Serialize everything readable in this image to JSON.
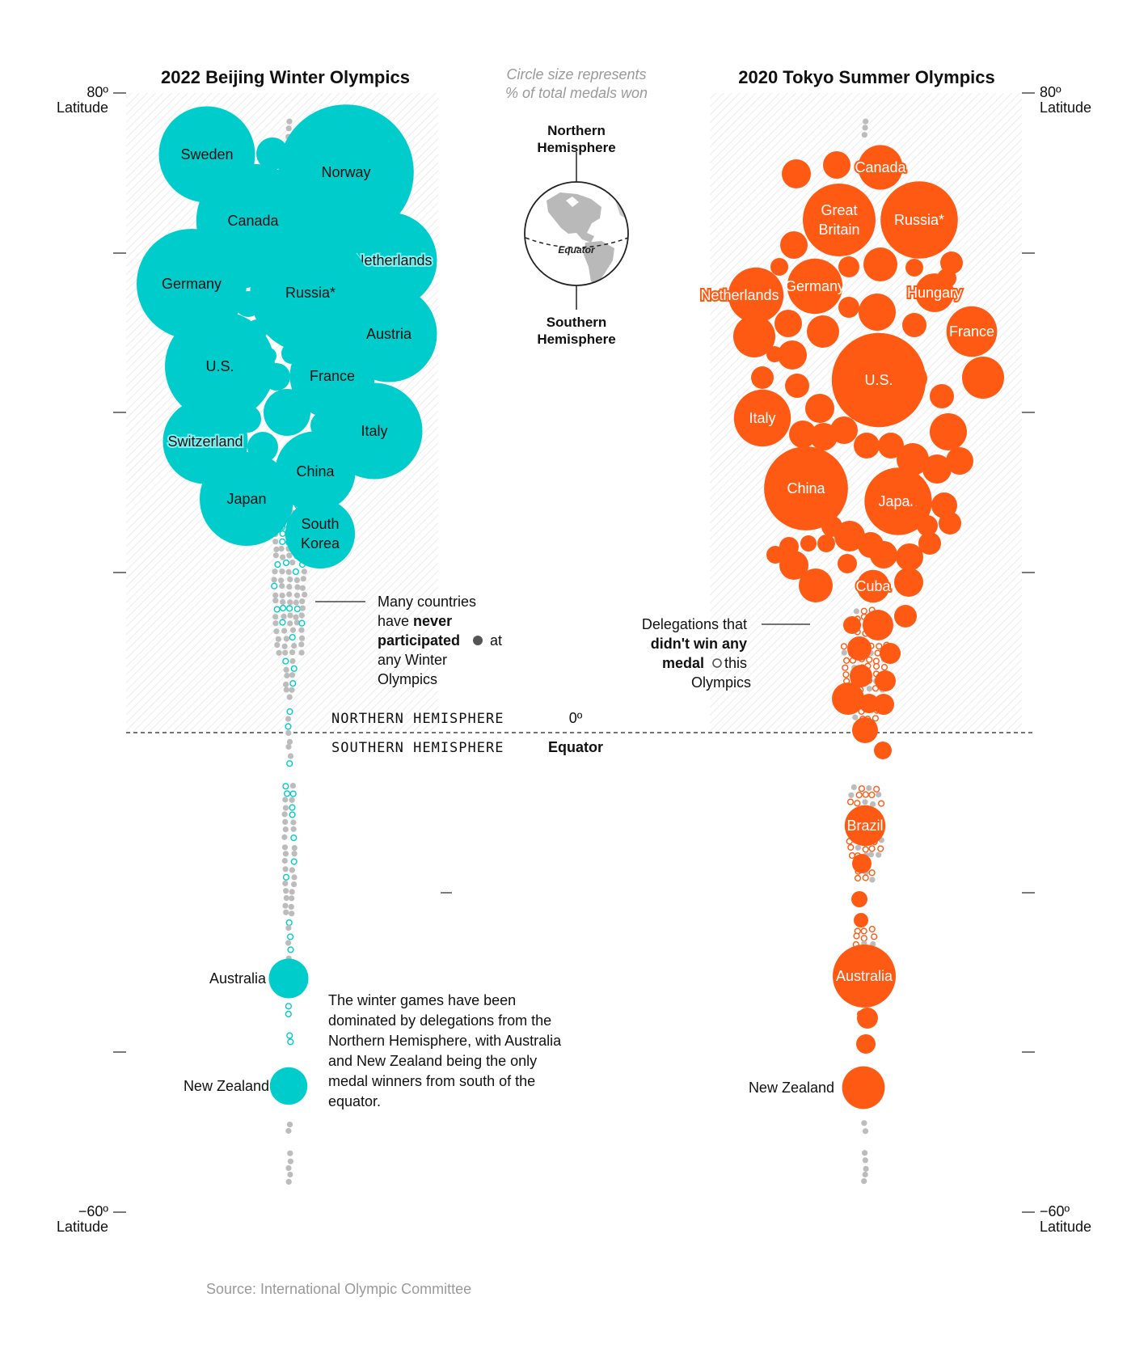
{
  "chart_data": {
    "type": "bubble",
    "description_encoding": "Circle size represents % of total medals won",
    "axis": {
      "top_label": "80º",
      "top_unit": "Latitude",
      "bottom_label": "−60º",
      "bottom_unit": "Latitude",
      "range_degrees": [
        -60,
        80
      ],
      "tick_degrees": [
        80,
        60,
        40,
        20,
        -20,
        -40,
        -60
      ]
    },
    "equator": {
      "value": "0º",
      "label": "Equator",
      "north_label": "NORTHERN HEMISPHERE",
      "south_label": "SOUTHERN HEMISPHERE"
    },
    "legend": {
      "caption_line1": "Circle size represents",
      "caption_line2": "% of total medals won",
      "north_line1": "Northern",
      "north_line2": "Hemisphere",
      "south_line1": "Southern",
      "south_line2": "Hemisphere",
      "globe_equator": "Equator"
    },
    "panels": [
      {
        "title": "2022 Beijing Winter Olympics",
        "color": "#00cccc",
        "label_color": "#111111",
        "labeled_countries": [
          {
            "name": "Sweden",
            "share_pct": 5.9
          },
          {
            "name": "Norway",
            "share_pct": 11.7
          },
          {
            "name": "Canada",
            "share_pct": 8.2
          },
          {
            "name": "Netherlands",
            "share_pct": 5.9
          },
          {
            "name": "Germany",
            "share_pct": 7.7
          },
          {
            "name": "Russia*",
            "share_pct": 9.3
          },
          {
            "name": "Austria",
            "share_pct": 5.9
          },
          {
            "name": "U.S.",
            "share_pct": 7.7
          },
          {
            "name": "France",
            "share_pct": 4.6
          },
          {
            "name": "Switzerland",
            "share_pct": 4.6
          },
          {
            "name": "Italy",
            "share_pct": 5.9
          },
          {
            "name": "China",
            "share_pct": 4.1
          },
          {
            "name": "Japan",
            "share_pct": 5.6
          },
          {
            "name": "South Korea",
            "share_pct": 3.1
          },
          {
            "name": "Australia",
            "share_pct": 1.0
          },
          {
            "name": "New Zealand",
            "share_pct": 0.9
          }
        ]
      },
      {
        "title": "2020 Tokyo Summer Olympics",
        "color": "#ff5a14",
        "label_color": "#ffffff",
        "labeled_countries": [
          {
            "name": "Canada",
            "share_pct": 2.4
          },
          {
            "name": "Great Britain",
            "share_pct": 6.4
          },
          {
            "name": "Russia*",
            "share_pct": 7.2
          },
          {
            "name": "Germany",
            "share_pct": 3.7
          },
          {
            "name": "Netherlands",
            "share_pct": 3.7
          },
          {
            "name": "Hungary",
            "share_pct": 1.8
          },
          {
            "name": "France",
            "share_pct": 3.1
          },
          {
            "name": "U.S.",
            "share_pct": 10.7
          },
          {
            "name": "Italy",
            "share_pct": 3.9
          },
          {
            "name": "China",
            "share_pct": 8.5
          },
          {
            "name": "Japan",
            "share_pct": 5.5
          },
          {
            "name": "Cuba",
            "share_pct": 1.3
          },
          {
            "name": "Brazil",
            "share_pct": 2.0
          },
          {
            "name": "Australia",
            "share_pct": 4.8
          },
          {
            "name": "New Zealand",
            "share_pct": 2.2
          }
        ]
      }
    ]
  },
  "annotations": {
    "never_participated": [
      "Many countries",
      "have ",
      "never",
      "participated",
      " at",
      "any Winter",
      "Olympics"
    ],
    "no_medal": [
      "Delegations that",
      "didn't win any",
      "medal",
      " this",
      "Olympics"
    ],
    "summary": [
      "The winter games have been",
      "dominated by delegations from the",
      "Northern Hemisphere, with Australia",
      "and New Zealand being the only",
      "medal winners from south of the",
      "equator."
    ]
  },
  "source": "Source: International Olympic Committee",
  "colors": {
    "winter": "#00cccc",
    "summer": "#ff5a14",
    "never_dot": "#bcbcbc",
    "hatch": "#e6e6e6"
  }
}
